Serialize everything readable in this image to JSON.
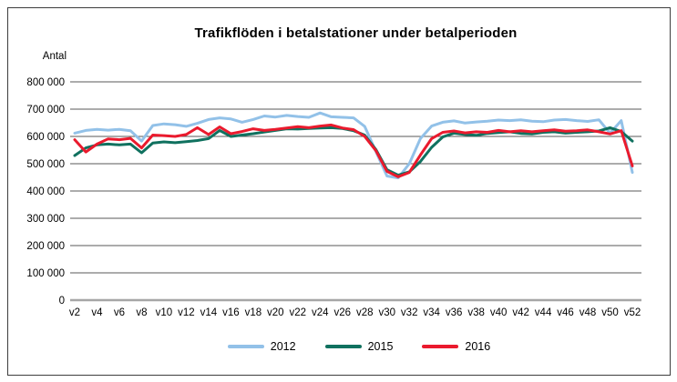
{
  "chart_data": {
    "type": "line",
    "title": "Trafikflöden i betalstationer under betalperioden",
    "y_axis_title": "Antal",
    "x_unit": "week",
    "categories": [
      "v2",
      "v3",
      "v4",
      "v5",
      "v6",
      "v7",
      "v8",
      "v9",
      "v10",
      "v11",
      "v12",
      "v13",
      "v14",
      "v15",
      "v16",
      "v17",
      "v18",
      "v19",
      "v20",
      "v21",
      "v22",
      "v23",
      "v24",
      "v25",
      "v26",
      "v27",
      "v28",
      "v29",
      "v30",
      "v31",
      "v32",
      "v33",
      "v34",
      "v35",
      "v36",
      "v37",
      "v38",
      "v39",
      "v40",
      "v41",
      "v42",
      "v43",
      "v44",
      "v45",
      "v46",
      "v47",
      "v48",
      "v49",
      "v50",
      "v51",
      "v52"
    ],
    "x_tick_every": 2,
    "ylim": [
      0,
      800000
    ],
    "y_tick_step": 100000,
    "y_tick_labels": [
      "800 000",
      "700 000",
      "600 000",
      "500 000",
      "400 000",
      "300 000",
      "200 000",
      "100 000",
      "0"
    ],
    "grid": "horizontal",
    "gridline_color": "#595959",
    "zero_line_color": "#a6a6a6",
    "legend_position": "bottom",
    "series": [
      {
        "name": "2012",
        "color": "#92C1E8",
        "values": [
          612000,
          622000,
          626000,
          623000,
          626000,
          621000,
          583000,
          640000,
          646000,
          643000,
          637000,
          648000,
          662000,
          668000,
          664000,
          652000,
          662000,
          675000,
          671000,
          677000,
          673000,
          670000,
          686000,
          672000,
          670000,
          668000,
          637000,
          545000,
          455000,
          448000,
          500000,
          592000,
          638000,
          652000,
          657000,
          649000,
          653000,
          656000,
          660000,
          658000,
          661000,
          656000,
          654000,
          660000,
          662000,
          658000,
          655000,
          661000,
          612000,
          658000,
          468000
        ]
      },
      {
        "name": "2015",
        "color": "#10715F",
        "values": [
          530000,
          558000,
          569000,
          572000,
          569000,
          572000,
          540000,
          576000,
          580000,
          577000,
          581000,
          585000,
          592000,
          622000,
          600000,
          605000,
          610000,
          616000,
          622000,
          628000,
          627000,
          629000,
          631000,
          632000,
          629000,
          621000,
          605000,
          552000,
          478000,
          458000,
          470000,
          508000,
          560000,
          598000,
          612000,
          607000,
          604000,
          611000,
          614000,
          617000,
          611000,
          609000,
          615000,
          617000,
          612000,
          615000,
          617000,
          620000,
          632000,
          618000,
          583000
        ]
      },
      {
        "name": "2016",
        "color": "#EA1A2D",
        "values": [
          588000,
          543000,
          572000,
          591000,
          588000,
          593000,
          558000,
          605000,
          603000,
          600000,
          607000,
          632000,
          607000,
          635000,
          610000,
          618000,
          628000,
          622000,
          626000,
          631000,
          636000,
          632000,
          638000,
          642000,
          631000,
          625000,
          600000,
          548000,
          472000,
          452000,
          468000,
          532000,
          592000,
          615000,
          620000,
          613000,
          617000,
          615000,
          622000,
          617000,
          621000,
          617000,
          621000,
          624000,
          619000,
          621000,
          624000,
          617000,
          609000,
          621000,
          492000
        ]
      }
    ]
  }
}
